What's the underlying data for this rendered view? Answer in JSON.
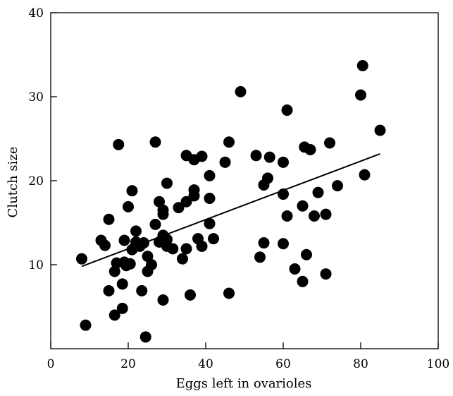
{
  "chart_data": {
    "type": "scatter",
    "title": "",
    "xlabel": "Eggs left in ovarioles",
    "ylabel": "Clutch size",
    "xlim": [
      0,
      100
    ],
    "ylim": [
      0,
      40
    ],
    "xticks": [
      0,
      20,
      40,
      60,
      80,
      100
    ],
    "yticks": [
      10,
      20,
      30,
      40
    ],
    "x_tick_labels": [
      "0",
      "20",
      "40",
      "60",
      "80",
      "100"
    ],
    "y_tick_labels": [
      "10",
      "20",
      "30",
      "40"
    ],
    "grid": false,
    "legend": "none",
    "colors": {
      "points": "#000000",
      "line": "#000000"
    },
    "series": [
      {
        "points": [
          {
            "x": 8,
            "y": 10.7
          },
          {
            "x": 9,
            "y": 2.8
          },
          {
            "x": 13,
            "y": 12.9
          },
          {
            "x": 14,
            "y": 12.3
          },
          {
            "x": 15,
            "y": 15.4
          },
          {
            "x": 15,
            "y": 6.9
          },
          {
            "x": 16.5,
            "y": 9.2
          },
          {
            "x": 16.5,
            "y": 4.0
          },
          {
            "x": 17,
            "y": 10.2
          },
          {
            "x": 17.5,
            "y": 24.3
          },
          {
            "x": 18.5,
            "y": 7.7
          },
          {
            "x": 18.5,
            "y": 4.8
          },
          {
            "x": 19,
            "y": 12.9
          },
          {
            "x": 19,
            "y": 10.3
          },
          {
            "x": 19.5,
            "y": 9.9
          },
          {
            "x": 20,
            "y": 16.9
          },
          {
            "x": 20.5,
            "y": 10.1
          },
          {
            "x": 21,
            "y": 18.8
          },
          {
            "x": 21,
            "y": 11.8
          },
          {
            "x": 22,
            "y": 14.0
          },
          {
            "x": 22,
            "y": 12.7
          },
          {
            "x": 23,
            "y": 12.2
          },
          {
            "x": 23.5,
            "y": 6.9
          },
          {
            "x": 24,
            "y": 12.6
          },
          {
            "x": 24.5,
            "y": 1.4
          },
          {
            "x": 25,
            "y": 11.0
          },
          {
            "x": 25,
            "y": 9.2
          },
          {
            "x": 26,
            "y": 10.0
          },
          {
            "x": 27,
            "y": 24.6
          },
          {
            "x": 27,
            "y": 14.8
          },
          {
            "x": 28,
            "y": 17.5
          },
          {
            "x": 28,
            "y": 12.7
          },
          {
            "x": 29,
            "y": 16.5
          },
          {
            "x": 29,
            "y": 16.0
          },
          {
            "x": 29,
            "y": 13.5
          },
          {
            "x": 29,
            "y": 5.8
          },
          {
            "x": 30,
            "y": 19.7
          },
          {
            "x": 30,
            "y": 13.0
          },
          {
            "x": 30,
            "y": 12.2
          },
          {
            "x": 31.5,
            "y": 11.9
          },
          {
            "x": 33,
            "y": 16.8
          },
          {
            "x": 34,
            "y": 10.7
          },
          {
            "x": 35,
            "y": 23.0
          },
          {
            "x": 35,
            "y": 17.5
          },
          {
            "x": 35,
            "y": 11.9
          },
          {
            "x": 36,
            "y": 6.4
          },
          {
            "x": 37,
            "y": 22.5
          },
          {
            "x": 37,
            "y": 18.9
          },
          {
            "x": 37,
            "y": 18.2
          },
          {
            "x": 38,
            "y": 13.1
          },
          {
            "x": 39,
            "y": 22.9
          },
          {
            "x": 39,
            "y": 12.2
          },
          {
            "x": 41,
            "y": 20.6
          },
          {
            "x": 41,
            "y": 17.9
          },
          {
            "x": 41,
            "y": 14.9
          },
          {
            "x": 42,
            "y": 13.1
          },
          {
            "x": 45,
            "y": 22.2
          },
          {
            "x": 46,
            "y": 24.6
          },
          {
            "x": 46,
            "y": 6.6
          },
          {
            "x": 49,
            "y": 30.6
          },
          {
            "x": 53,
            "y": 23.0
          },
          {
            "x": 54,
            "y": 10.9
          },
          {
            "x": 55,
            "y": 19.5
          },
          {
            "x": 55,
            "y": 12.6
          },
          {
            "x": 56,
            "y": 20.3
          },
          {
            "x": 56.5,
            "y": 22.8
          },
          {
            "x": 60,
            "y": 22.2
          },
          {
            "x": 60,
            "y": 18.4
          },
          {
            "x": 60,
            "y": 12.5
          },
          {
            "x": 61,
            "y": 28.4
          },
          {
            "x": 61,
            "y": 15.8
          },
          {
            "x": 63,
            "y": 9.5
          },
          {
            "x": 65,
            "y": 17.0
          },
          {
            "x": 65,
            "y": 8.0
          },
          {
            "x": 65.5,
            "y": 24.0
          },
          {
            "x": 66,
            "y": 11.2
          },
          {
            "x": 67,
            "y": 23.7
          },
          {
            "x": 68,
            "y": 15.8
          },
          {
            "x": 69,
            "y": 18.6
          },
          {
            "x": 71,
            "y": 16.0
          },
          {
            "x": 71,
            "y": 8.9
          },
          {
            "x": 72,
            "y": 24.5
          },
          {
            "x": 74,
            "y": 19.4
          },
          {
            "x": 80,
            "y": 30.2
          },
          {
            "x": 80.5,
            "y": 33.7
          },
          {
            "x": 81,
            "y": 20.7
          },
          {
            "x": 85,
            "y": 26.0
          }
        ]
      }
    ],
    "trendline": {
      "x": [
        8,
        85
      ],
      "y": [
        9.8,
        23.2
      ]
    }
  }
}
